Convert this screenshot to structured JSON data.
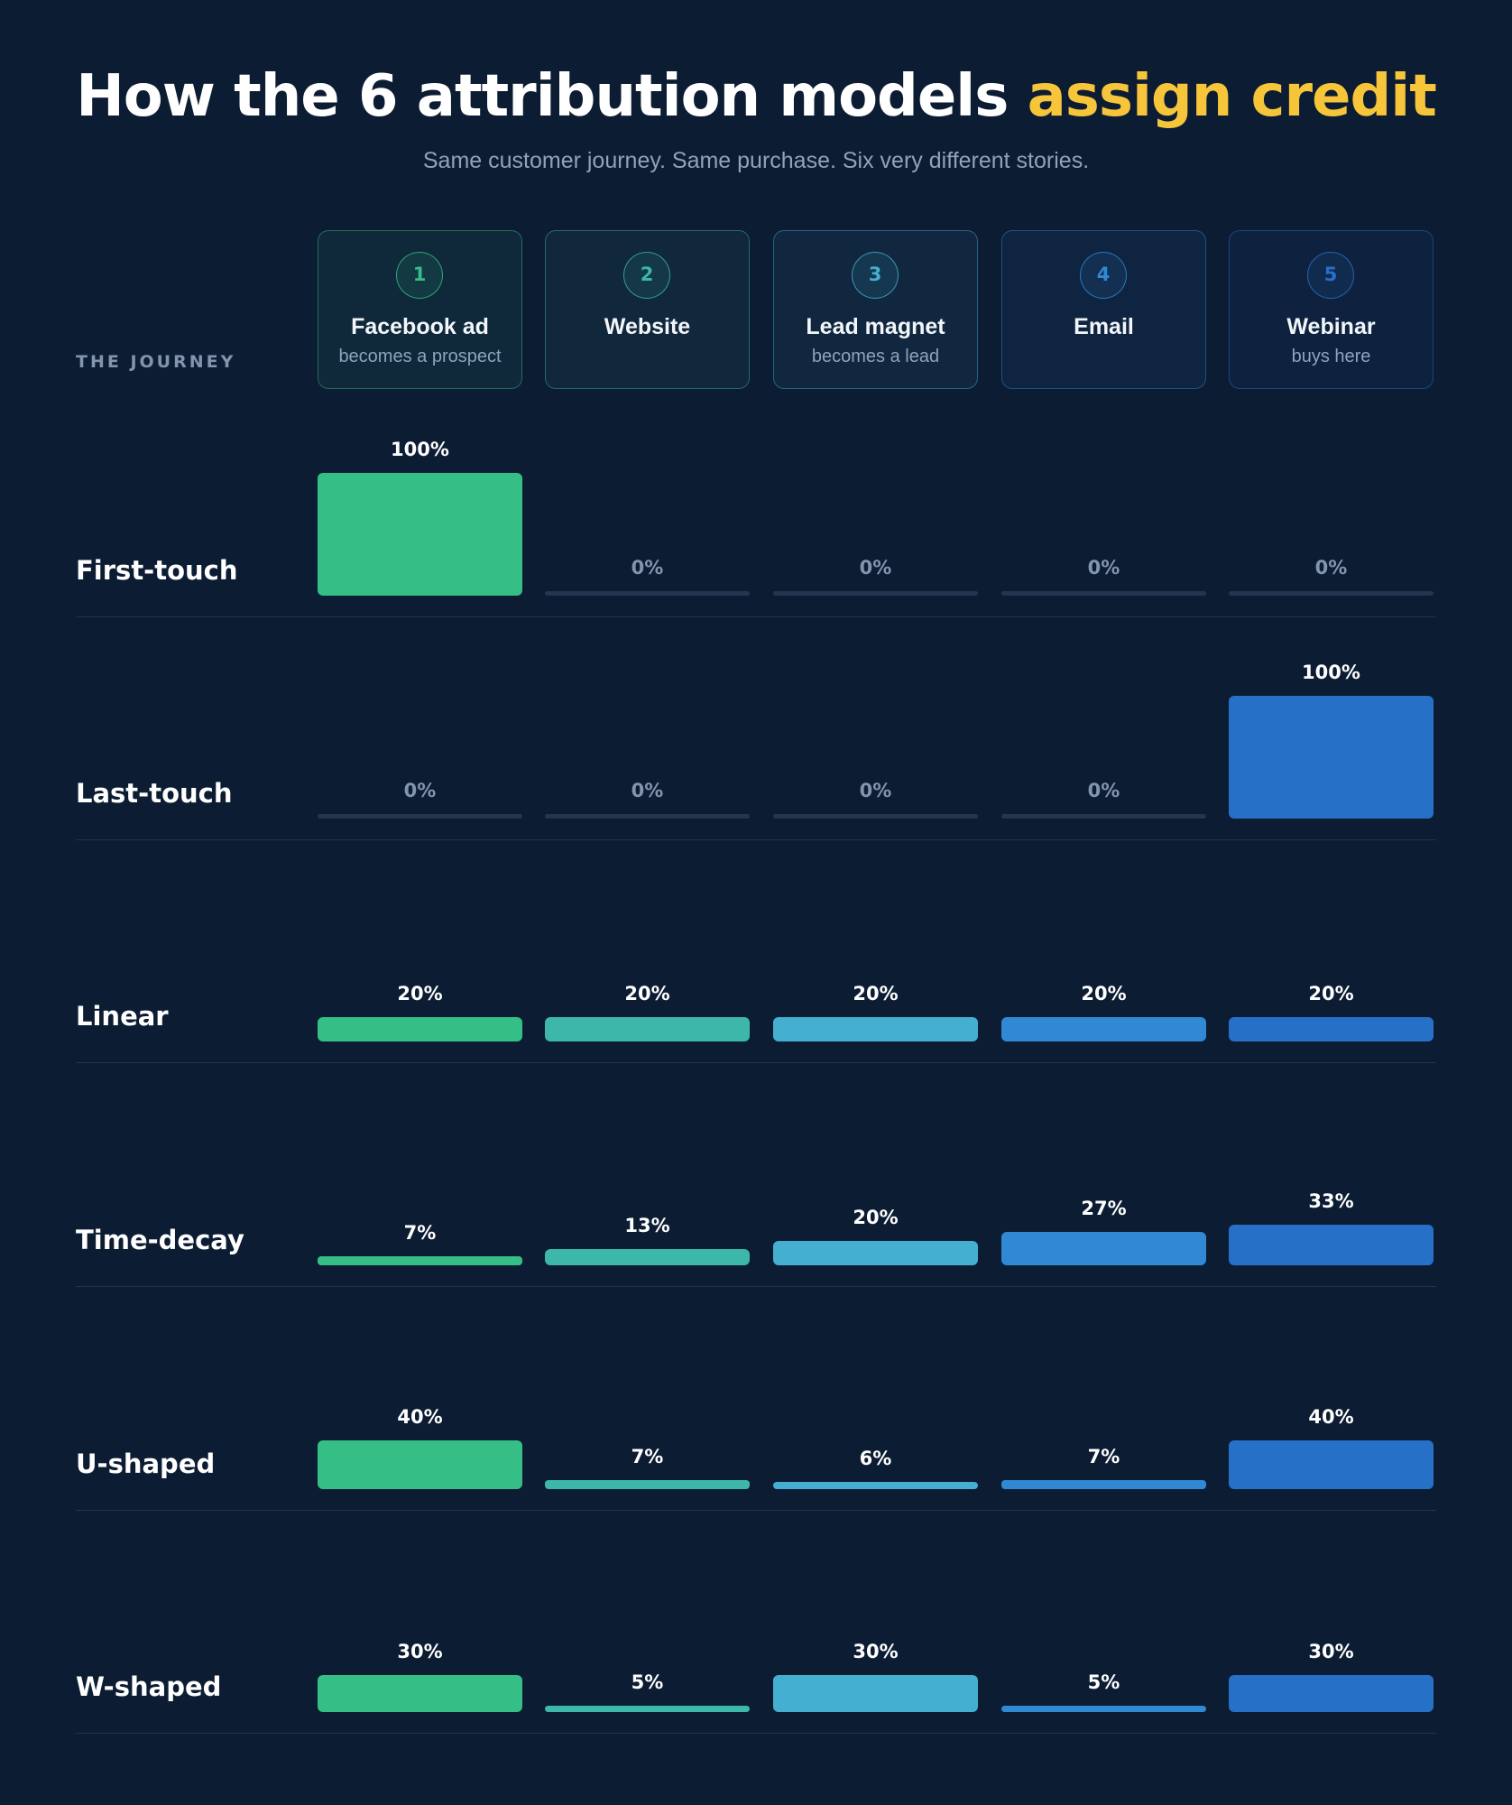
{
  "header": {
    "title_main": "How the 6 attribution models ",
    "title_highlight": "assign credit",
    "subtitle": "Same customer journey. Same purchase. Six very different stories."
  },
  "journey_label": "THE JOURNEY",
  "colors": {
    "background": "#0c1c33",
    "highlight": "#f7c53a",
    "steps": [
      "#35bf86",
      "#3cb7aa",
      "#44afd0",
      "#3189d3",
      "#2770c8"
    ],
    "zero_track": "#22364f"
  },
  "chart_data": {
    "type": "bar",
    "title": "How the 6 attribution models assign credit",
    "categories": [
      "Facebook ad",
      "Website",
      "Lead magnet",
      "Email",
      "Webinar"
    ],
    "category_steps": [
      "1",
      "2",
      "3",
      "4",
      "5"
    ],
    "category_subtitles": [
      "becomes a prospect",
      "",
      "becomes a lead",
      "",
      "buys here"
    ],
    "unit": "%",
    "ylim": [
      0,
      100
    ],
    "series": [
      {
        "name": "First-touch",
        "values": [
          100,
          0,
          0,
          0,
          0
        ]
      },
      {
        "name": "Last-touch",
        "values": [
          0,
          0,
          0,
          0,
          100
        ]
      },
      {
        "name": "Linear",
        "values": [
          20,
          20,
          20,
          20,
          20
        ]
      },
      {
        "name": "Time-decay",
        "values": [
          7,
          13,
          20,
          27,
          33
        ]
      },
      {
        "name": "U-shaped",
        "values": [
          40,
          7,
          6,
          7,
          40
        ]
      },
      {
        "name": "W-shaped",
        "values": [
          30,
          5,
          30,
          5,
          30
        ]
      }
    ]
  }
}
